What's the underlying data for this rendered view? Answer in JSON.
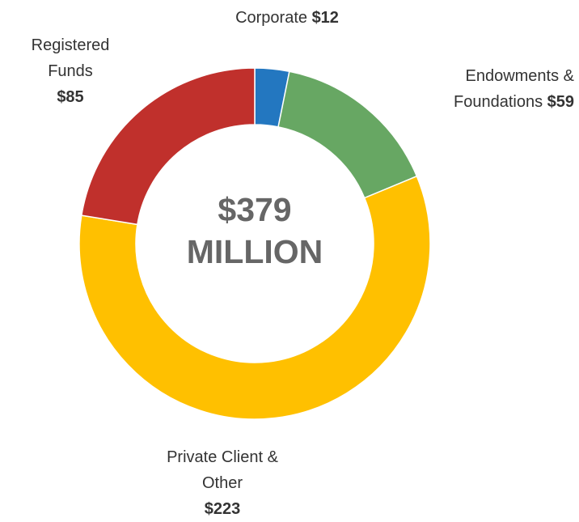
{
  "chart_data": {
    "type": "donut",
    "center_text": [
      "$379",
      "MILLION"
    ],
    "categories": [
      "Corporate",
      "Endowments & Foundations",
      "Private Client & Other",
      "Registered Funds"
    ],
    "values": [
      12,
      59,
      223,
      85
    ],
    "value_labels": [
      "$12",
      "$59",
      "$223",
      "$85"
    ],
    "colors": [
      "#2377c0",
      "#67a763",
      "#ffc000",
      "#c0302c"
    ]
  }
}
